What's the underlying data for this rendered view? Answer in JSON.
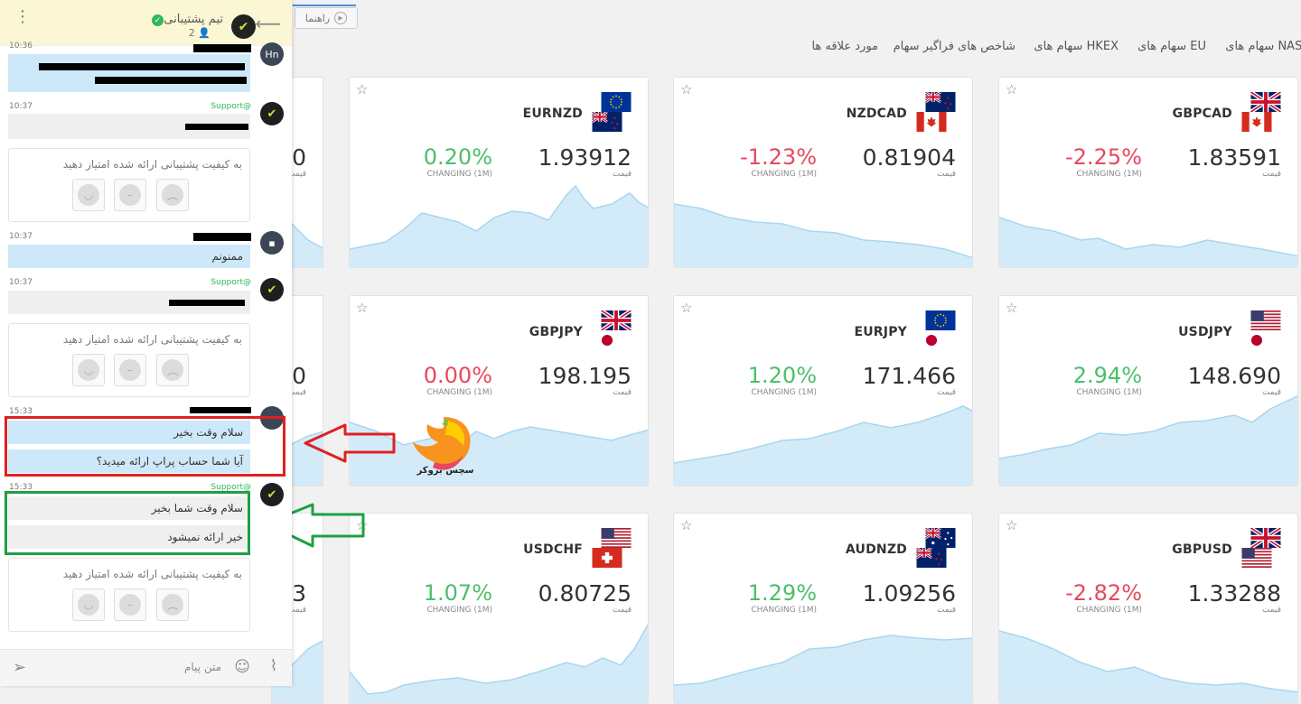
{
  "toolbar": {
    "guide_label": "راهنما"
  },
  "tabs": [
    {
      "label": "مورد علاقه ها"
    },
    {
      "label": "شاخص های فراگیر سهام"
    },
    {
      "label": "سهام های HKEX"
    },
    {
      "label": "سهام های EU"
    },
    {
      "label": "سهام های NASDAQ"
    }
  ],
  "price_label": "قیمت",
  "change_label": "CHANGING (1M)",
  "cards": [
    {
      "symbol": "GBPCAD",
      "change": "-2.25%",
      "price": "1.83591",
      "trend": "down",
      "flags": [
        "uk",
        "ca"
      ]
    },
    {
      "symbol": "NZDCAD",
      "change": "-1.23%",
      "price": "0.81904",
      "trend": "down",
      "flags": [
        "nz",
        "ca"
      ]
    },
    {
      "symbol": "EURNZD",
      "change": "0.20%",
      "price": "1.93912",
      "trend": "up",
      "flags": [
        "eu",
        "nz"
      ]
    },
    {
      "symbol": "USDJPY",
      "change": "2.94%",
      "price": "148.690",
      "trend": "up",
      "flags": [
        "us",
        "jp"
      ]
    },
    {
      "symbol": "EURJPY",
      "change": "1.20%",
      "price": "171.466",
      "trend": "up",
      "flags": [
        "eu",
        "jp"
      ]
    },
    {
      "symbol": "GBPJPY",
      "change": "0.00%",
      "price": "198.195",
      "trend": "down",
      "flags": [
        "uk",
        "jp"
      ]
    },
    {
      "symbol": "GBPUSD",
      "change": "-2.82%",
      "price": "1.33288",
      "trend": "down",
      "flags": [
        "uk",
        "us"
      ]
    },
    {
      "symbol": "AUDNZD",
      "change": "1.29%",
      "price": "1.09256",
      "trend": "up",
      "flags": [
        "au",
        "nz"
      ]
    },
    {
      "symbol": "USDCHF",
      "change": "1.07%",
      "price": "0.80725",
      "trend": "up",
      "flags": [
        "us",
        "ch"
      ]
    }
  ],
  "partial_cards": [
    {
      "price_fragment": "0"
    },
    {
      "price_fragment": "0"
    },
    {
      "price_fragment": "3"
    }
  ],
  "chat": {
    "title": "تیم پشتیبانی",
    "member_count": "2",
    "input_placeholder": "متن پیام",
    "rating_prompt": "به کیفیت پشتیبانی ارائه شده امتیاز دهید",
    "sender_support": "Support@",
    "avatar_user": "Hn",
    "times": {
      "t1": "10:36",
      "t2": "10:37",
      "t3": "10:37",
      "t4": "10:37",
      "t5": "15:33",
      "t6": "15:33"
    },
    "messages": {
      "thanks": "ممنونم",
      "user_greeting": "سلام وقت بخیر",
      "user_question": "آیا شما حساب پراپ ارائه میدید؟",
      "support_greeting": "سلام وقت شما بخیر",
      "support_answer": "خیر ارائه نمیشود"
    }
  },
  "watermark": {
    "text": "سچس بروکر"
  },
  "colors": {
    "up": "#4bbf6b",
    "down": "#e8485c",
    "user_bubble": "#cde8f8",
    "support_bubble": "#efefef",
    "annotation_red": "#e02020",
    "annotation_green": "#1ea043"
  }
}
